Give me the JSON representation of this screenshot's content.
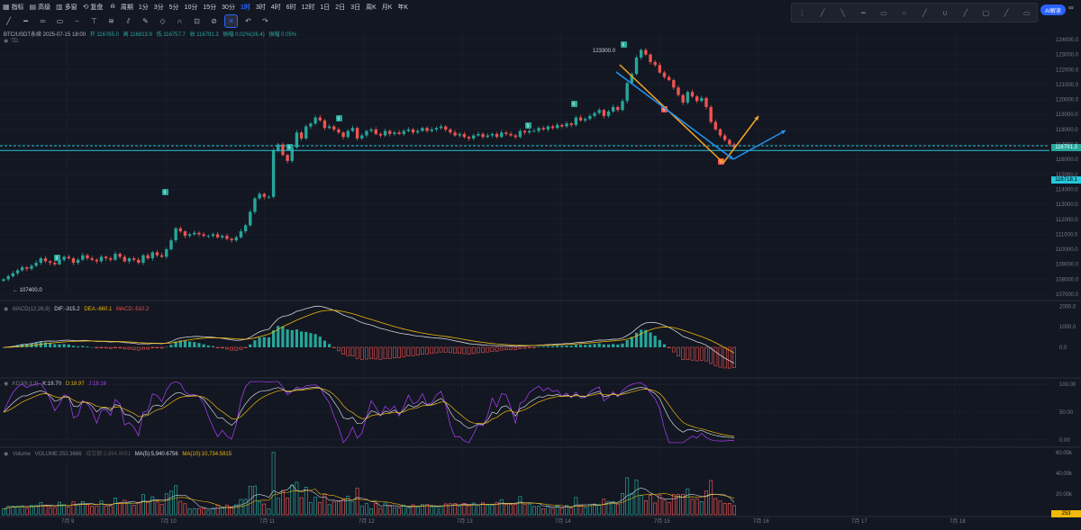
{
  "toolbar": {
    "left_items": [
      {
        "icon": "index-icon",
        "label": "指标"
      },
      {
        "icon": "alert-icon",
        "label": "高级"
      },
      {
        "icon": "grid-icon",
        "label": "多窗"
      },
      {
        "icon": "replay-icon",
        "label": "复盘"
      },
      {
        "icon": "chart-type-icon",
        "label": "ılı"
      },
      {
        "icon": "",
        "label": "周期"
      }
    ],
    "intervals": [
      "1分",
      "3分",
      "5分",
      "10分",
      "15分",
      "30分",
      "1时",
      "3时",
      "4时",
      "6时",
      "12时",
      "1日",
      "2日",
      "3日",
      "周K",
      "月K",
      "年K"
    ],
    "active_interval": "1时"
  },
  "legend_main": {
    "symbol": "BTC/USDT永续 2025-07-15 18:00",
    "open": "开 116765.0",
    "high": "高 116813.9",
    "low": "低 116757.7",
    "close": "收 116791.3",
    "change": "振幅 0.02%(26.4)",
    "amp": "振幅 0.05%",
    "td": "TD"
  },
  "legend_macd": {
    "name": "MACD(12,26,9)",
    "dif": "DIF:-915.2",
    "dea": "DEA:-660.1",
    "macd": "MACD:-510.2"
  },
  "legend_kdj": {
    "name": "KDJ(9,3,3)",
    "k": "K:18.70",
    "d": "D:18.97",
    "j": "J:18.16"
  },
  "legend_vol": {
    "name": "Volume",
    "vol": "VOLUME:253.3666",
    "turnover": "成交额:3,864.9051",
    "ma5": "MA(5):5,940.6756",
    "ma10": "MA(10):10,734.5815"
  },
  "colors": {
    "up": "#26a69a",
    "down": "#ef5350",
    "grid": "#1f2430",
    "hline": "#26c6da",
    "orange": "#f5a623",
    "blue": "#2196f3",
    "dif": "#d1d4dc",
    "dea": "#f0b90b",
    "j": "#b040ff"
  },
  "annotations": {
    "high_label": "123300.0",
    "low_label": "107400.0",
    "current_price": "116791.3",
    "support_price": "116718.1",
    "vol_tag": "253"
  },
  "chart_data": [
    {
      "type": "candlestick",
      "title": "BTC/USDT永续 1H",
      "x_labels": [
        "7月 9",
        "7月 10",
        "7月 11",
        "7月 12",
        "7月 13",
        "7月 14",
        "7月 15",
        "7月 16",
        "7月 17",
        "7月 18"
      ],
      "y_ticks": [
        107000,
        108000,
        109000,
        110000,
        111000,
        112000,
        113000,
        114000,
        115000,
        116000,
        117000,
        118000,
        119000,
        120000,
        121000,
        122000,
        123000,
        124000
      ],
      "ylim": [
        106700,
        124600
      ],
      "close_path": [
        108000,
        108200,
        108400,
        108600,
        108800,
        108700,
        108900,
        109100,
        109400,
        109200,
        109100,
        109000,
        109300,
        109500,
        109400,
        109100,
        109300,
        109600,
        109400,
        109300,
        109200,
        109500,
        109400,
        109300,
        109700,
        109500,
        109200,
        109400,
        109300,
        109100,
        109600,
        109400,
        109800,
        109600,
        109500,
        110000,
        110600,
        111400,
        111200,
        110900,
        111000,
        111100,
        111000,
        110900,
        110900,
        111000,
        110800,
        110900,
        110700,
        110600,
        110800,
        111200,
        111600,
        112500,
        113400,
        113700,
        113500,
        113500,
        116600,
        117000,
        116300,
        115900,
        116800,
        117800,
        117400,
        118200,
        118400,
        118800,
        118600,
        118100,
        118200,
        118000,
        117800,
        117500,
        117900,
        118100,
        117400,
        117600,
        117900,
        118000,
        117700,
        117600,
        117900,
        117700,
        117800,
        117700,
        117900,
        118000,
        117800,
        117900,
        118100,
        117900,
        118000,
        118100,
        118200,
        118000,
        117800,
        117600,
        117700,
        117500,
        117400,
        117600,
        117700,
        117500,
        117600,
        117700,
        117500,
        117800,
        117700,
        117600,
        117500,
        117900,
        117800,
        117900,
        117900,
        118100,
        118000,
        118200,
        118100,
        118300,
        118200,
        118400,
        118300,
        118800,
        118600,
        118700,
        118900,
        119100,
        119300,
        118900,
        119200,
        119500,
        119300,
        119900,
        121100,
        121700,
        122800,
        123300,
        123000,
        122500,
        122300,
        121800,
        121500,
        121300,
        120800,
        120300,
        119800,
        120500,
        120200,
        119900,
        120100,
        119500,
        118500,
        118000,
        117600,
        117300,
        117000,
        116791
      ],
      "highlights": [
        {
          "label": "9",
          "note": "TD marker"
        }
      ],
      "horizontal_lines": [
        116791.3,
        116718.1
      ]
    },
    {
      "type": "bar+line",
      "title": "MACD(12,26,9)",
      "y_ticks": [
        2000,
        1000,
        0
      ],
      "ylim": [
        -1400,
        2100
      ]
    },
    {
      "type": "line",
      "title": "KDJ(9,3,3)",
      "y_ticks": [
        100,
        50,
        0
      ],
      "ylim": [
        -10,
        110
      ]
    },
    {
      "type": "bar",
      "title": "Volume",
      "y_ticks": [
        "60.00k",
        "40.00k",
        "20.00k"
      ],
      "ylim": [
        0,
        65000
      ]
    }
  ]
}
